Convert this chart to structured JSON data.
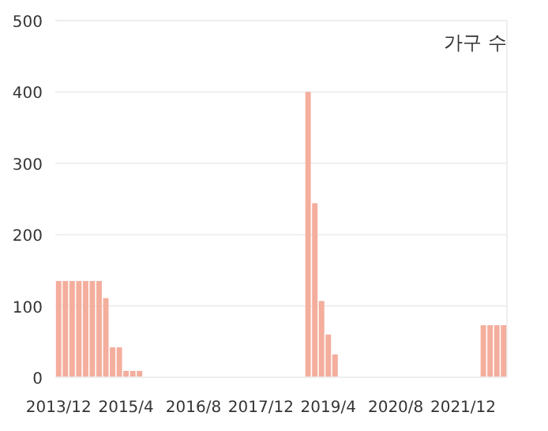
{
  "chart_data": {
    "type": "bar",
    "title": "가구 수",
    "categories": [
      "2013/12",
      null,
      null,
      null,
      null,
      null,
      null,
      null,
      null,
      null,
      "2015/4",
      null,
      null,
      null,
      null,
      null,
      null,
      null,
      null,
      null,
      "2016/8",
      null,
      null,
      null,
      null,
      null,
      null,
      null,
      null,
      null,
      "2017/12",
      null,
      null,
      null,
      null,
      null,
      null,
      null,
      null,
      null,
      "2019/4",
      null,
      null,
      null,
      null,
      null,
      null,
      null,
      null,
      null,
      "2020/8",
      null,
      null,
      null,
      null,
      null,
      null,
      null,
      null,
      null,
      "2021/12",
      null,
      null,
      null,
      null,
      null,
      null
    ],
    "values": [
      135,
      135,
      135,
      135,
      135,
      135,
      135,
      111,
      42,
      42,
      9,
      9,
      9,
      null,
      null,
      null,
      null,
      null,
      null,
      null,
      null,
      null,
      null,
      null,
      null,
      null,
      null,
      null,
      null,
      null,
      null,
      null,
      null,
      null,
      null,
      null,
      null,
      400,
      244,
      107,
      60,
      32,
      null,
      null,
      null,
      null,
      null,
      null,
      null,
      null,
      null,
      null,
      null,
      null,
      null,
      null,
      null,
      null,
      null,
      null,
      null,
      null,
      null,
      73,
      73,
      73,
      73
    ],
    "color": "#f4ae9d",
    "ylim": [
      0,
      500
    ],
    "yticks": [
      0,
      100,
      200,
      300,
      400,
      500
    ],
    "grid": "y"
  }
}
